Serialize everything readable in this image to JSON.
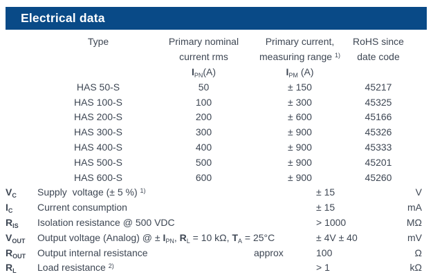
{
  "title": "Electrical data",
  "colors": {
    "header_bar": "#094a87",
    "body_text": "#3d4653",
    "title_text": "#ffffff"
  },
  "upper_table": {
    "col1_header": "Type",
    "col2_header_line1": "Primary nominal",
    "col2_header_line2": "current rms",
    "col2_symbol": {
      "sym": "I",
      "sub": "PN",
      "rest": "(A)"
    },
    "col3_header_line1": "Primary current,",
    "col3_header_line2": "measuring range",
    "col3_header_sup": "1)",
    "col3_symbol": {
      "sym": "I",
      "sub": "PM",
      "rest": "(A)"
    },
    "col4_header_line1": "RoHS since",
    "col4_header_line2": "date code",
    "rows": [
      {
        "type": "HAS 50-S",
        "ipn": "50",
        "ipm": "± 150",
        "rohs": "45217"
      },
      {
        "type": "HAS 100-S",
        "ipn": "100",
        "ipm": "± 300",
        "rohs": "45325"
      },
      {
        "type": "HAS 200-S",
        "ipn": "200",
        "ipm": "± 600",
        "rohs": "45166"
      },
      {
        "type": "HAS 300-S",
        "ipn": "300",
        "ipm": "± 900",
        "rohs": "45326"
      },
      {
        "type": "HAS 400-S",
        "ipn": "400",
        "ipm": "± 900",
        "rohs": "45333"
      },
      {
        "type": "HAS 500-S",
        "ipn": "500",
        "ipm": "± 900",
        "rohs": "45201"
      },
      {
        "type": "HAS 600-S",
        "ipn": "600",
        "ipm": "± 900",
        "rohs": "45260"
      }
    ]
  },
  "parameters": [
    {
      "sym": "V",
      "sub": "C",
      "desc": "Supply  voltage (± 5 %) ",
      "desc_sup": "1)",
      "value": "± 15",
      "unit": "V"
    },
    {
      "sym": "I",
      "sub": "C",
      "desc": "Current consumption",
      "value": "± 15",
      "unit": "mA"
    },
    {
      "sym": "R",
      "sub": "IS",
      "desc": "Isolation resistance @ 500 VDC",
      "value": "> 1000",
      "unit": "MΩ"
    },
    {
      "sym": "V",
      "sub": "OUT",
      "desc_parts": [
        "Output voltage (Analog) @ ± ",
        "I",
        "PN",
        ", ",
        "R",
        "L",
        " = 10 kΩ, ",
        "T",
        "A",
        " = 25°C"
      ],
      "value": "± 4V ± 40",
      "unit": "mV"
    },
    {
      "sym": "R",
      "sub": "OUT",
      "desc": "Output internal resistance",
      "mid": "approx",
      "value": "100",
      "unit": "Ω"
    },
    {
      "sym": "R",
      "sub": "L",
      "desc": "Load resistance ",
      "desc_sup": "2)",
      "value": "> 1",
      "unit": "kΩ"
    }
  ]
}
